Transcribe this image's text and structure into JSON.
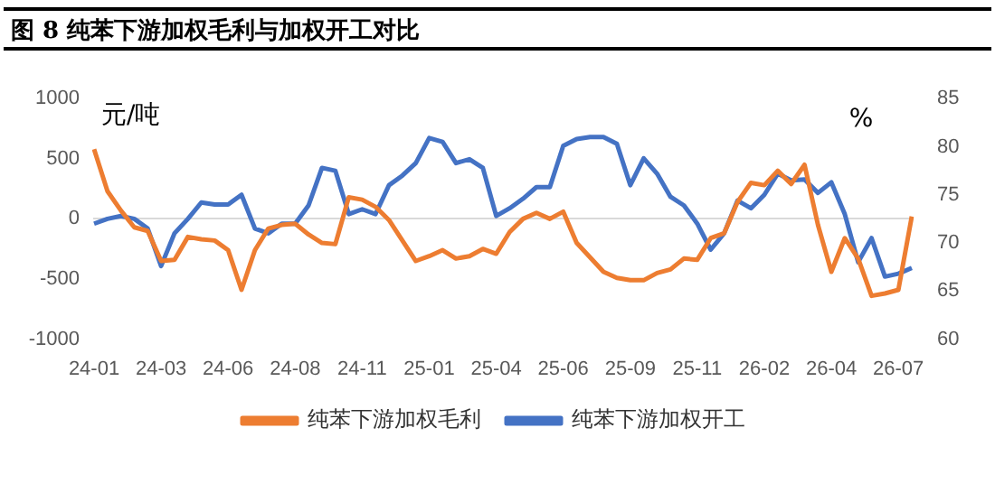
{
  "chart_data": {
    "type": "line",
    "title": "图 8  纯苯下游加权毛利与加权开工对比",
    "ylabel": "元/吨",
    "y2label": "%",
    "categories": [
      "24-01",
      null,
      null,
      null,
      null,
      "24-03",
      null,
      null,
      null,
      null,
      "24-06",
      null,
      null,
      null,
      null,
      "24-08",
      null,
      null,
      null,
      null,
      "24-11",
      null,
      null,
      null,
      null,
      "25-01",
      null,
      null,
      null,
      null,
      "25-04",
      null,
      null,
      null,
      null,
      "25-06",
      null,
      null,
      null,
      null,
      "25-09",
      null,
      null,
      null,
      null,
      "25-11",
      null,
      null,
      null,
      null,
      "26-02",
      null,
      null,
      null,
      null,
      "26-04",
      null,
      null,
      null,
      null,
      "26-07",
      null
    ],
    "series": [
      {
        "name": "纯苯下游加权毛利",
        "color": "#ed7d31",
        "values": [
          580,
          230,
          70,
          -70,
          -100,
          -350,
          -340,
          -150,
          -170,
          -180,
          -260,
          -590,
          -260,
          -80,
          -50,
          -40,
          -130,
          -200,
          -210,
          180,
          160,
          100,
          -10,
          -180,
          -350,
          -310,
          -260,
          -330,
          -310,
          -250,
          -290,
          -110,
          0,
          50,
          0,
          60,
          -200,
          -320,
          -440,
          -490,
          -510,
          -510,
          -450,
          -420,
          -330,
          -340,
          -160,
          -120,
          140,
          300,
          280,
          400,
          290,
          450,
          -50,
          -440,
          -160,
          -330,
          -640,
          -620,
          -590,
          20
        ]
      },
      {
        "name": "纯苯下游加权开工",
        "color": "#4472c4",
        "axis": "y2",
        "values": [
          72.0,
          72.5,
          72.8,
          72.5,
          71.5,
          67.6,
          71.0,
          72.5,
          74.2,
          74.0,
          74.0,
          75.0,
          71.5,
          71.0,
          72.0,
          72.0,
          73.9,
          77.8,
          77.5,
          73.0,
          73.5,
          73.0,
          76.0,
          77.0,
          78.3,
          80.9,
          80.5,
          78.3,
          78.7,
          77.8,
          72.8,
          73.6,
          74.6,
          75.8,
          75.8,
          80.1,
          80.8,
          81.0,
          81.0,
          80.3,
          76.0,
          78.8,
          77.2,
          74.8,
          73.9,
          72.0,
          69.3,
          71.0,
          74.4,
          73.6,
          75.0,
          77.2,
          76.5,
          76.6,
          75.2,
          76.3,
          73.0,
          68.0,
          70.5,
          66.5,
          66.8,
          67.4
        ]
      }
    ],
    "ylim": [
      -1000,
      1000
    ],
    "yticks": [
      -1000,
      -500,
      0,
      500,
      1000
    ],
    "y2lim": [
      60,
      85
    ],
    "y2ticks": [
      60,
      65,
      70,
      75,
      80,
      85
    ],
    "legend": "bottom",
    "marker": "none",
    "line_style": "solid"
  }
}
